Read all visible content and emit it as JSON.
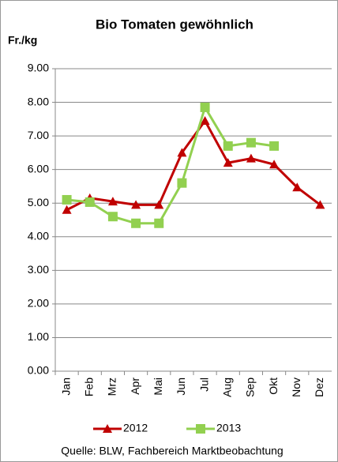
{
  "chart_data": {
    "type": "line",
    "title": "Bio Tomaten gewöhnlich",
    "y_label": "Fr./kg",
    "source": "Quelle: BLW, Fachbereich Marktbeobachtung",
    "categories": [
      "Jan",
      "Feb",
      "Mrz",
      "Apr",
      "Mai",
      "Jun",
      "Jul",
      "Aug",
      "Sep",
      "Okt",
      "Nov",
      "Dez"
    ],
    "series": [
      {
        "name": "2012",
        "color": "#c00000",
        "marker": "triangle",
        "values": [
          4.8,
          5.15,
          5.05,
          4.95,
          4.95,
          6.5,
          7.45,
          6.2,
          6.33,
          6.15,
          5.47,
          4.95
        ]
      },
      {
        "name": "2013",
        "color": "#92d050",
        "marker": "square",
        "values": [
          5.1,
          5.03,
          4.6,
          4.4,
          4.4,
          5.6,
          7.85,
          6.7,
          6.8,
          6.7,
          null,
          null
        ]
      }
    ],
    "ylim": [
      0,
      9
    ],
    "yticks": [
      {
        "value": 0,
        "label": "0.00"
      },
      {
        "value": 1,
        "label": "1.00"
      },
      {
        "value": 2,
        "label": "2.00"
      },
      {
        "value": 3,
        "label": "3.00"
      },
      {
        "value": 4,
        "label": "4.00"
      },
      {
        "value": 5,
        "label": "5.00"
      },
      {
        "value": 6,
        "label": "6.00"
      },
      {
        "value": 7,
        "label": "7.00"
      },
      {
        "value": 8,
        "label": "8.00"
      },
      {
        "value": 9,
        "label": "9.00"
      }
    ],
    "grid": true,
    "legend": "bottom"
  }
}
